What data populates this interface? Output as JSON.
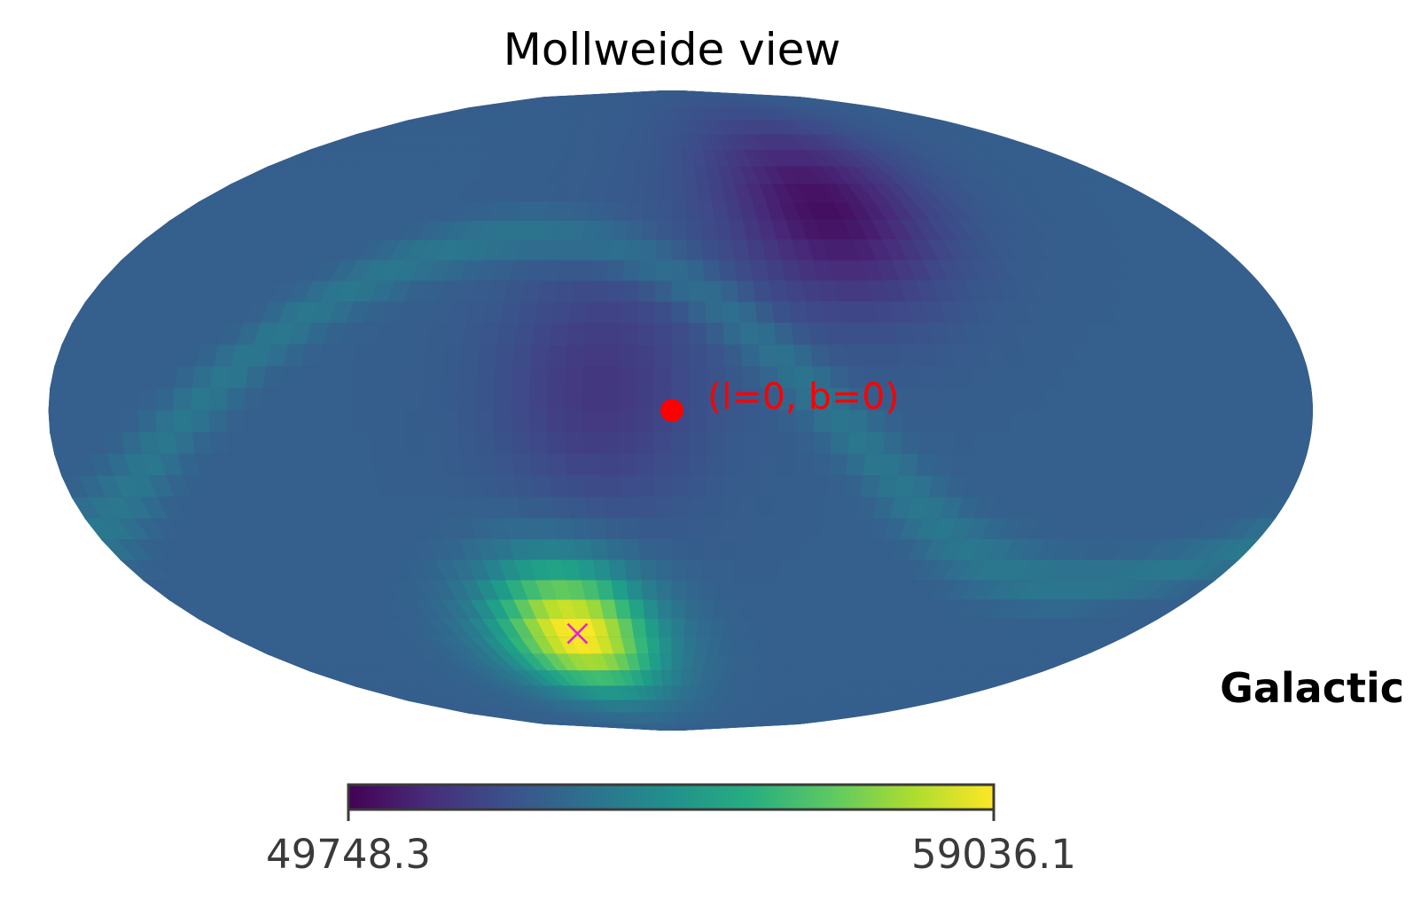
{
  "chart_data": {
    "type": "heatmap",
    "projection": "Mollweide",
    "title": "Mollweide view",
    "coordinate_system": "Galactic",
    "colormap": "viridis",
    "colorbar": {
      "min": 49748.3,
      "max": 59036.1,
      "min_label": "49748.3",
      "max_label": "59036.1",
      "orientation": "horizontal"
    },
    "grid": false,
    "annotations": [
      {
        "label": "(l=0, b=0)",
        "marker": "dot",
        "l": 0,
        "b": 0,
        "color": "#ff0000"
      },
      {
        "label": "",
        "marker": "x",
        "l": 37,
        "b": -54,
        "color": "#e020e0"
      }
    ],
    "field_features": [
      {
        "feature": "maximum",
        "l": 37,
        "b": -54,
        "relative_level": 1.0
      },
      {
        "feature": "minimum",
        "l": -55,
        "b": 48,
        "relative_level": 0.0
      },
      {
        "feature": "minimum",
        "l": 20,
        "b": 5,
        "relative_level": 0.17
      },
      {
        "feature": "ridge",
        "from_l": 110,
        "from_b": 20,
        "to_l": -150,
        "to_b": -40,
        "relative_level": 0.5
      }
    ]
  }
}
